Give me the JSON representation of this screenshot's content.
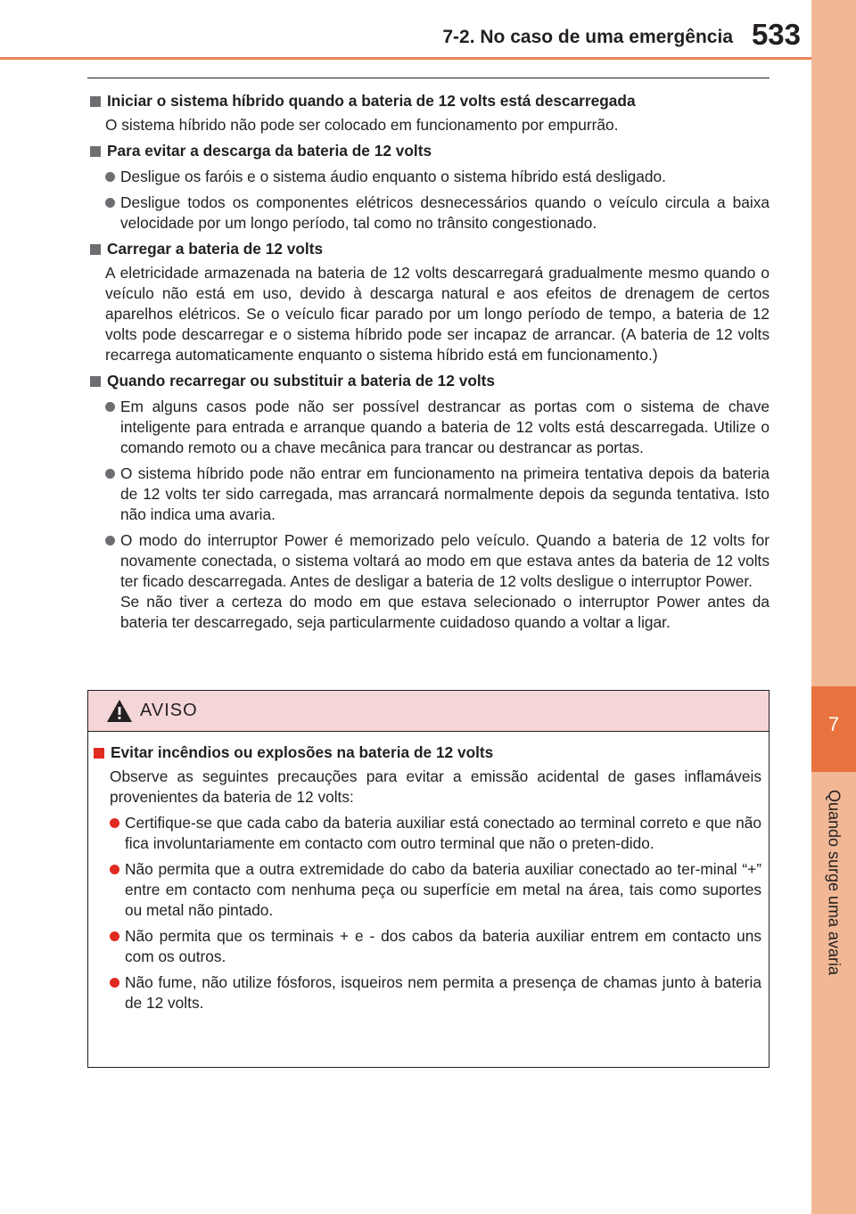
{
  "header": {
    "section": "7-2. No caso de uma emergência",
    "page_number": "533"
  },
  "side_tab": {
    "chapter_number": "7",
    "chapter_title": "Quando surge uma avaria"
  },
  "sections": [
    {
      "heading": "Iniciar o sistema híbrido quando a bateria de 12 volts está descarregada",
      "paragraph": "O sistema híbrido não pode ser colocado em funcionamento por empurrão."
    },
    {
      "heading": "Para evitar a descarga da bateria de 12 volts",
      "bullets": [
        "Desligue os faróis e o sistema áudio enquanto o sistema híbrido está desligado.",
        "Desligue todos os componentes elétricos desnecessários quando o veículo circula a baixa velocidade por um longo período, tal como no trânsito congestionado."
      ]
    },
    {
      "heading": "Carregar a bateria de 12 volts",
      "paragraph": "A eletricidade armazenada na bateria de 12 volts descarregará gradualmente mesmo quando o veículo não está em uso, devido à descarga natural e aos efeitos de drenagem de certos aparelhos elétricos. Se o veículo ficar parado por um longo período de tempo, a bateria de 12 volts pode descarregar e o sistema híbrido pode ser incapaz de arrancar. (A bateria de 12 volts recarrega automaticamente enquanto o sistema híbrido está em funcionamento.)"
    },
    {
      "heading": "Quando recarregar ou substituir a bateria de 12 volts",
      "bullets": [
        "Em alguns casos pode não ser possível destrancar as portas com o sistema de chave inteligente para entrada e arranque quando a bateria de 12 volts está descarregada. Utilize o comando remoto ou a chave mecânica para trancar ou destrancar as portas.",
        "O sistema híbrido pode não entrar em funcionamento na primeira tentativa depois da bateria de 12 volts ter sido carregada, mas arrancará normalmente depois da segunda tentativa. Isto não indica uma avaria.",
        "O modo do interruptor Power é memorizado pelo veículo. Quando a bateria de 12 volts for novamente conectada, o sistema voltará ao modo em que estava antes da bateria de 12 volts ter ficado descarregada. Antes de desligar a bateria de 12 volts desligue o interruptor Power.",
        "Se não tiver a certeza do modo em que estava selecionado o interruptor Power antes da bateria ter descarregado, seja particularmente cuidadoso quando a voltar a ligar."
      ]
    }
  ],
  "warning": {
    "title": "AVISO",
    "heading": "Evitar incêndios ou explosões na bateria de 12 volts",
    "paragraph": "Observe as seguintes precauções para evitar a emissão acidental de gases inflamáveis provenientes da bateria de 12 volts:",
    "bullets": [
      "Certifique-se que cada cabo da bateria auxiliar está conectado ao terminal correto e que não fica involuntariamente em contacto com outro terminal que não o preten-dido.",
      "Não permita que a outra extremidade do cabo da bateria auxiliar conectado ao ter-minal “+” entre em contacto com nenhuma peça ou superfície em metal na área, tais como suportes ou metal não pintado.",
      "Não permita que os terminais + e - dos cabos da bateria auxiliar entrem em contacto uns com os outros.",
      "Não fume, não utilize fósforos, isqueiros nem permita a presença de chamas junto à bateria de 12 volts."
    ]
  },
  "colors": {
    "accent_orange": "#e8845a",
    "side_tab": "#f2b896",
    "warning_header_bg": "#f5d6d8",
    "warning_marker": "#e02b20"
  }
}
